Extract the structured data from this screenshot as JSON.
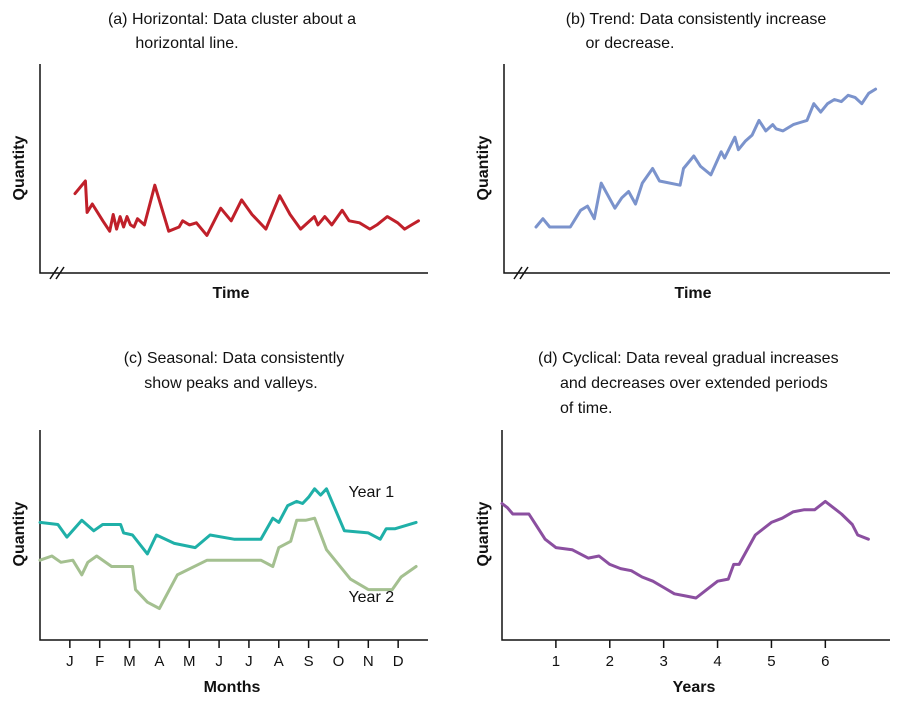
{
  "chart_data": [
    {
      "id": "a",
      "type": "line",
      "title_lines": [
        "(a) Horizontal: Data cluster about a",
        "horizontal line."
      ],
      "xlabel": "Time",
      "ylabel": "Quantity",
      "xlim": [
        0,
        100
      ],
      "ylim": [
        0,
        100
      ],
      "axis_break": true,
      "grid": false,
      "series": [
        {
          "color": "#c0202a",
          "x": [
            0,
            3,
            3.5,
            5,
            8,
            10,
            11,
            12,
            13,
            14,
            15,
            16,
            17,
            18,
            20,
            23,
            27,
            30,
            31,
            33,
            35,
            38,
            42,
            45,
            48,
            51,
            55,
            59,
            62,
            65,
            69,
            70,
            72,
            74,
            77,
            79,
            82,
            85,
            87,
            90,
            93,
            95,
            97,
            99
          ],
          "y": [
            38,
            44,
            29,
            33,
            25,
            20,
            28,
            21,
            27,
            22,
            27,
            23,
            22,
            26,
            23,
            42,
            20,
            22,
            25,
            23,
            24,
            18,
            31,
            25,
            35,
            28,
            21,
            37,
            28,
            21,
            27,
            23,
            27,
            23,
            30,
            25,
            24,
            21,
            23,
            27,
            24,
            21,
            23,
            25
          ]
        }
      ]
    },
    {
      "id": "b",
      "type": "line",
      "title_lines": [
        "(b) Trend: Data consistently increase",
        "or decrease."
      ],
      "xlabel": "Time",
      "ylabel": "Quantity",
      "xlim": [
        0,
        100
      ],
      "ylim": [
        0,
        100
      ],
      "axis_break": true,
      "grid": false,
      "series": [
        {
          "color": "#7b93cc",
          "x": [
            0,
            2,
            4,
            10,
            13,
            15,
            17,
            19,
            23,
            25,
            27,
            29,
            31,
            34,
            36,
            42,
            43,
            46,
            48,
            51,
            54,
            55,
            58,
            59,
            61,
            63,
            65,
            67,
            69,
            70,
            72,
            75,
            77,
            79,
            81,
            83,
            85,
            87,
            89,
            91,
            93,
            95,
            97,
            99
          ],
          "y": [
            22,
            26,
            22,
            22,
            30,
            32,
            26,
            43,
            31,
            36,
            39,
            33,
            43,
            50,
            44,
            42,
            50,
            56,
            51,
            47,
            58,
            55,
            65,
            59,
            63,
            66,
            73,
            68,
            71,
            69,
            68,
            71,
            72,
            73,
            81,
            77,
            81,
            83,
            82,
            85,
            84,
            81,
            86,
            88
          ]
        }
      ]
    },
    {
      "id": "c",
      "type": "line",
      "title_lines": [
        "(c) Seasonal: Data consistently",
        "show peaks and valleys."
      ],
      "xlabel": "Months",
      "ylabel": "Quantity",
      "categories": [
        "J",
        "F",
        "M",
        "A",
        "M",
        "J",
        "J",
        "A",
        "S",
        "O",
        "N",
        "D"
      ],
      "xlim": [
        0,
        13
      ],
      "ylim": [
        0,
        100
      ],
      "grid": false,
      "series": [
        {
          "name": "Year 1",
          "color": "#1fb0a8",
          "label_pos": [
            11.1,
            68
          ],
          "x": [
            0,
            0.6,
            0.9,
            1.4,
            1.8,
            2.1,
            2.7,
            2.8,
            3.1,
            3.6,
            3.9,
            4.5,
            5.2,
            5.7,
            6.5,
            7.4,
            7.8,
            8.0,
            8.3,
            8.6,
            8.8,
            9.0,
            9.2,
            9.4,
            9.6,
            10.2,
            11.0,
            11.4,
            11.6,
            11.9,
            12.6
          ],
          "y": [
            56,
            55,
            49,
            57,
            52,
            55,
            55,
            51,
            50,
            41,
            50,
            46,
            44,
            50,
            48,
            48,
            58,
            56,
            64,
            66,
            65,
            68,
            72,
            69,
            72,
            52,
            51,
            48,
            53,
            53,
            56
          ]
        },
        {
          "name": "Year 2",
          "color": "#a4c090",
          "label_pos": [
            11.1,
            18
          ],
          "x": [
            0,
            0.4,
            0.7,
            1.1,
            1.4,
            1.6,
            1.9,
            2.4,
            3.1,
            3.2,
            3.6,
            4.0,
            4.6,
            5.6,
            6.5,
            7.4,
            7.8,
            8.0,
            8.4,
            8.6,
            8.9,
            9.2,
            9.6,
            10.0,
            10.4,
            11.0,
            11.8,
            12.1,
            12.6
          ],
          "y": [
            38,
            40,
            37,
            38,
            31,
            37,
            40,
            35,
            35,
            24,
            18,
            15,
            31,
            38,
            38,
            38,
            35,
            44,
            47,
            57,
            57,
            58,
            43,
            36,
            29,
            24,
            24,
            30,
            35
          ]
        }
      ]
    },
    {
      "id": "d",
      "type": "line",
      "title_lines": [
        "(d) Cyclical: Data reveal gradual increases",
        "and decreases over extended periods",
        "of time."
      ],
      "xlabel": "Years",
      "ylabel": "Quantity",
      "xticks": [
        1,
        2,
        3,
        4,
        5,
        6
      ],
      "xlim": [
        0,
        7.2
      ],
      "ylim": [
        0,
        100
      ],
      "grid": false,
      "series": [
        {
          "color": "#8b4fa0",
          "x": [
            0,
            0.1,
            0.2,
            0.5,
            0.65,
            0.8,
            1.0,
            1.3,
            1.6,
            1.8,
            2.0,
            2.2,
            2.4,
            2.6,
            2.8,
            3.0,
            3.2,
            3.4,
            3.6,
            3.8,
            4.0,
            4.2,
            4.3,
            4.4,
            4.7,
            5.0,
            5.2,
            5.4,
            5.6,
            5.8,
            6.0,
            6.3,
            6.5,
            6.6,
            6.8
          ],
          "y": [
            65,
            63,
            60,
            60,
            54,
            48,
            44,
            43,
            39,
            40,
            36,
            34,
            33,
            30,
            28,
            25,
            22,
            21,
            20,
            24,
            28,
            29,
            36,
            36,
            50,
            56,
            58,
            61,
            62,
            62,
            66,
            60,
            55,
            50,
            48
          ]
        }
      ]
    }
  ]
}
